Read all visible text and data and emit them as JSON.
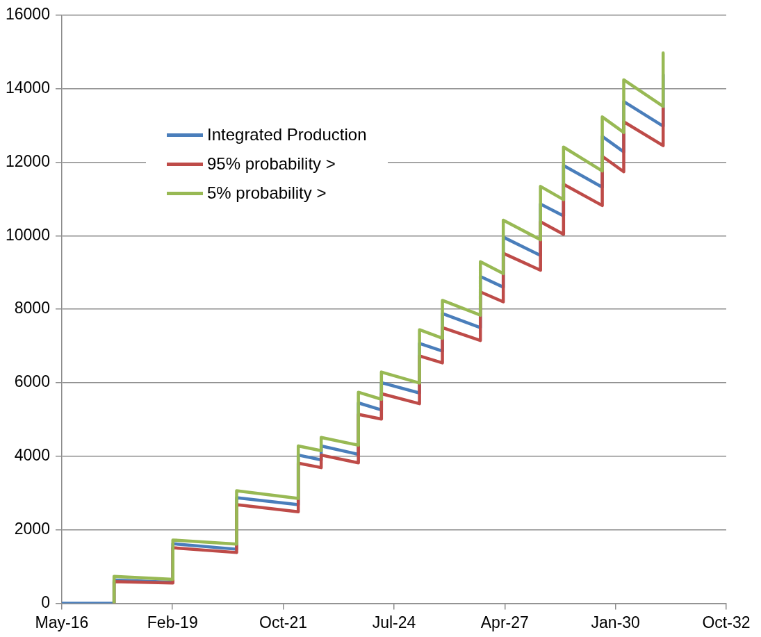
{
  "chart_data": {
    "type": "line",
    "legend": "top left",
    "grid": "y",
    "marker": "none",
    "line_style": "solid",
    "xlim": [
      "2016-05-10",
      "2032-10-15"
    ],
    "xticks": [
      {
        "value": "2016-05-10",
        "label": "May-16"
      },
      {
        "value": "2019-02-04",
        "label": "Feb-19"
      },
      {
        "value": "2021-10-31",
        "label": "Oct-21"
      },
      {
        "value": "2024-07-28",
        "label": "Jul-24"
      },
      {
        "value": "2027-04-24",
        "label": "Apr-27"
      },
      {
        "value": "2030-01-19",
        "label": "Jan-30"
      },
      {
        "value": "2032-10-15",
        "label": "Oct-32"
      }
    ],
    "ylim": [
      0,
      16000
    ],
    "yticks": [
      0,
      2000,
      4000,
      6000,
      8000,
      10000,
      12000,
      14000,
      16000
    ],
    "series": [
      {
        "name": "Integrated Production",
        "color": "#4a7ebb",
        "x": [
          "2016-05-10",
          "2017-08-25",
          "2017-08-25",
          "2019-02-07",
          "2019-02-07",
          "2020-09-05",
          "2020-09-05",
          "2022-03-16",
          "2022-03-16",
          "2022-10-09",
          "2022-10-09",
          "2023-09-10",
          "2023-09-10",
          "2024-04-05",
          "2024-04-05",
          "2025-03-15",
          "2025-03-15",
          "2025-10-08",
          "2025-10-08",
          "2026-09-16",
          "2026-09-16",
          "2027-04-11",
          "2027-04-11",
          "2028-03-12",
          "2028-03-12",
          "2028-10-06",
          "2028-10-06",
          "2029-09-21",
          "2029-09-21",
          "2030-04-03",
          "2030-04-03",
          "2031-03-25",
          "2031-03-25"
        ],
        "values": [
          0,
          0,
          630,
          570,
          1620,
          1470,
          2870,
          2680,
          4030,
          3900,
          4280,
          4050,
          5450,
          5260,
          6000,
          5720,
          7070,
          6860,
          7880,
          7500,
          8890,
          8600,
          9960,
          9460,
          10860,
          10540,
          11910,
          11320,
          12700,
          12280,
          13650,
          12980,
          14380
        ]
      },
      {
        "name": "95% probability >",
        "color": "#be4b48",
        "x": [
          "2017-08-25",
          "2017-08-25",
          "2019-02-07",
          "2019-02-07",
          "2020-09-05",
          "2020-09-05",
          "2022-03-16",
          "2022-03-16",
          "2022-10-09",
          "2022-10-09",
          "2023-09-10",
          "2023-09-10",
          "2024-04-05",
          "2024-04-05",
          "2025-03-15",
          "2025-03-15",
          "2025-10-08",
          "2025-10-08",
          "2026-09-16",
          "2026-09-16",
          "2027-04-11",
          "2027-04-11",
          "2028-03-12",
          "2028-03-12",
          "2028-10-06",
          "2028-10-06",
          "2029-09-21",
          "2029-09-21",
          "2030-04-03",
          "2030-04-03",
          "2031-03-25",
          "2031-03-25"
        ],
        "values": [
          0,
          590,
          550,
          1510,
          1380,
          2680,
          2490,
          3810,
          3690,
          4030,
          3820,
          5140,
          5010,
          5700,
          5430,
          6730,
          6540,
          7500,
          7150,
          8470,
          8200,
          9520,
          9060,
          10380,
          10040,
          11400,
          10820,
          12160,
          11740,
          13100,
          12450,
          13480
        ]
      },
      {
        "name": "5% probability >",
        "color": "#98b954",
        "x": [
          "2017-08-25",
          "2017-08-25",
          "2019-02-07",
          "2019-02-07",
          "2020-09-05",
          "2020-09-05",
          "2022-03-16",
          "2022-03-16",
          "2022-10-09",
          "2022-10-09",
          "2023-09-10",
          "2023-09-10",
          "2024-04-05",
          "2024-04-05",
          "2025-03-15",
          "2025-03-15",
          "2025-10-08",
          "2025-10-08",
          "2026-09-16",
          "2026-09-16",
          "2027-04-11",
          "2027-04-11",
          "2028-03-12",
          "2028-03-12",
          "2028-10-06",
          "2028-10-06",
          "2029-09-21",
          "2029-09-21",
          "2030-04-03",
          "2030-04-03",
          "2031-03-25",
          "2031-03-25"
        ],
        "values": [
          0,
          730,
          650,
          1720,
          1610,
          3060,
          2850,
          4280,
          4150,
          4510,
          4300,
          5740,
          5550,
          6290,
          5990,
          7440,
          7210,
          8240,
          7840,
          9290,
          8970,
          10420,
          9890,
          11340,
          10980,
          12410,
          11760,
          13230,
          12810,
          14240,
          13520,
          14970
        ]
      }
    ]
  }
}
